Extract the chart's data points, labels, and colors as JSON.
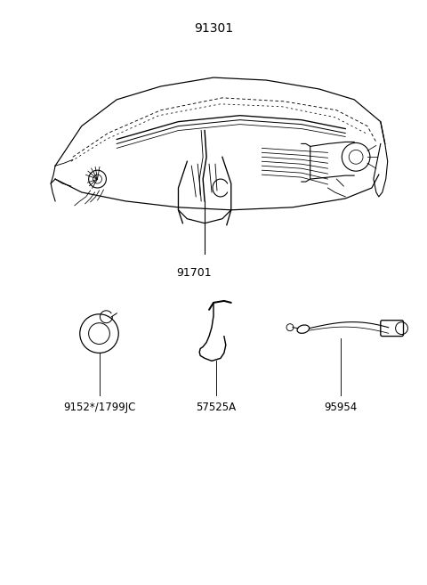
{
  "bg_color": "#ffffff",
  "title_part_number": "91301",
  "main_label": "91701",
  "sub_labels": [
    "9152*/1799JC",
    "57525A",
    "95954"
  ],
  "line_color": "#000000",
  "text_color": "#000000",
  "font_size_title": 10,
  "font_size_labels": 8.5
}
